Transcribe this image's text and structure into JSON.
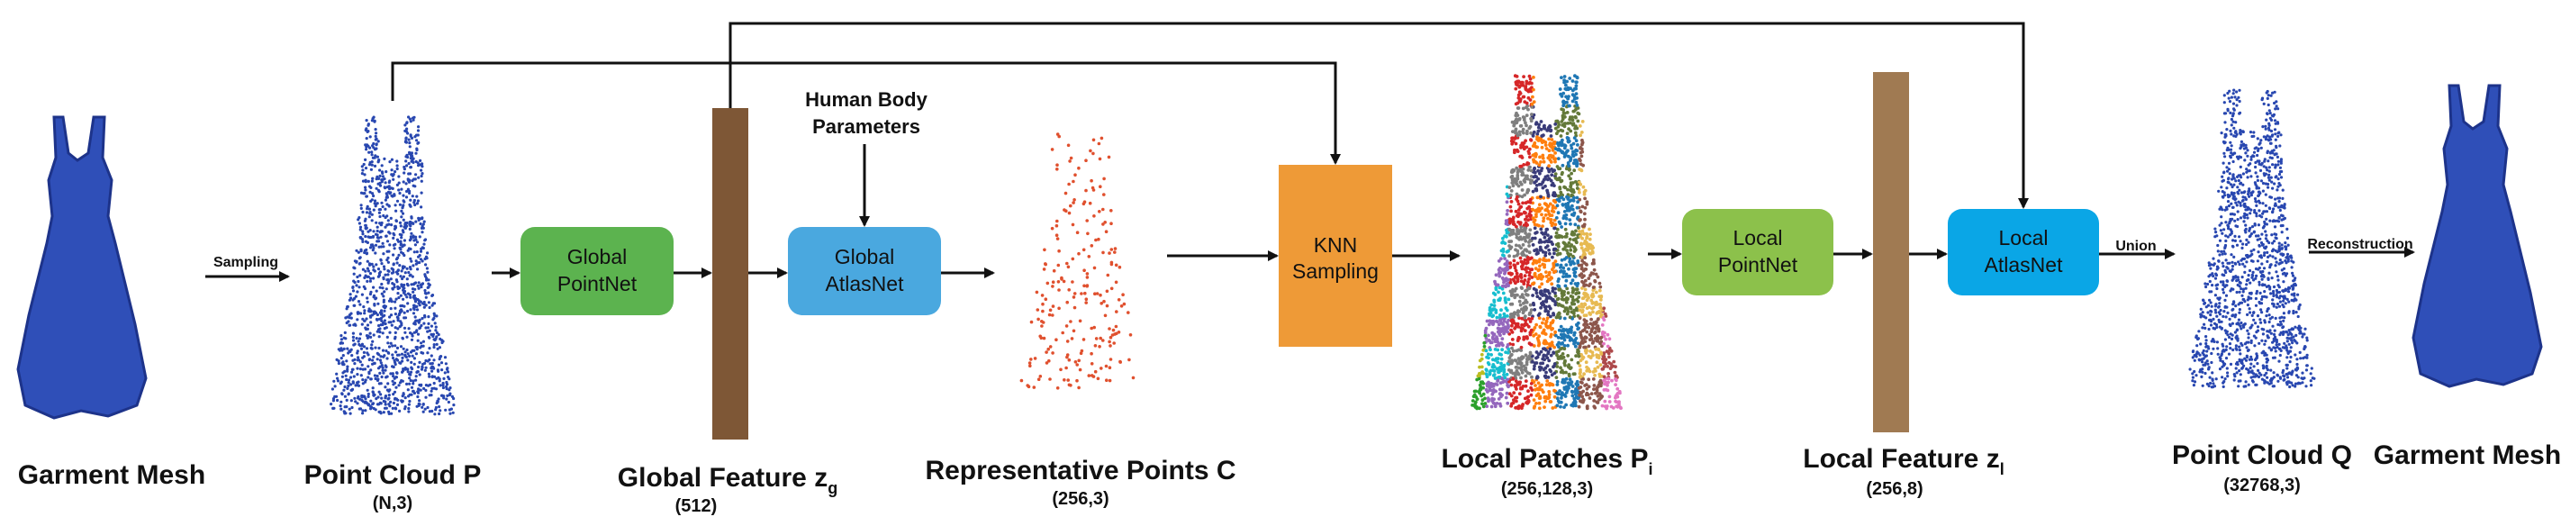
{
  "colors": {
    "garment": "#2f4fb8",
    "garment_dark": "#1d338a",
    "points": "#2847b0",
    "global_pointnet": "#5cb34f",
    "global_atlasnet": "#4aa8df",
    "knn": "#ee9a37",
    "local_pointnet": "#8cc14b",
    "local_atlasnet": "#0aa6e6",
    "global_feature_bar": "#7e5736",
    "local_feature_bar": "#a07a52",
    "rep_points": "#e0502e",
    "arrow": "#111111"
  },
  "stages": {
    "garment_mesh_in": {
      "title": "Garment Mesh"
    },
    "point_cloud_p": {
      "title": "Point Cloud ",
      "bold": "P",
      "sub": "(N,3)"
    },
    "global_feature": {
      "title": "Global Feature ",
      "bold": "z",
      "subscript": "g",
      "sub": "(512)"
    },
    "representative_points": {
      "title": "Representative Points ",
      "bold": "C",
      "sub": "(256,3)"
    },
    "local_patches": {
      "title": "Local Patches ",
      "bold": "P",
      "subscript": "i",
      "sub": "(256,128,3)"
    },
    "local_feature": {
      "title": "Local Feature ",
      "bold": "z",
      "subscript": "l",
      "sub": "(256,8)"
    },
    "point_cloud_q": {
      "title": "Point Cloud ",
      "bold": "Q",
      "sub": "(32768,3)"
    },
    "garment_mesh_out": {
      "title": "Garment Mesh"
    }
  },
  "boxes": {
    "global_pointnet": [
      "Global",
      "PointNet"
    ],
    "global_atlasnet": [
      "Global",
      "AtlasNet"
    ],
    "knn_sampling": [
      "KNN",
      "Sampling"
    ],
    "local_pointnet": [
      "Local",
      "PointNet"
    ],
    "local_atlasnet": [
      "Local",
      "AtlasNet"
    ]
  },
  "human_body": [
    "Human Body",
    "Parameters"
  ],
  "arrow_labels": {
    "sampling": "Sampling",
    "union": "Union",
    "reconstruction": "Reconstruction"
  }
}
